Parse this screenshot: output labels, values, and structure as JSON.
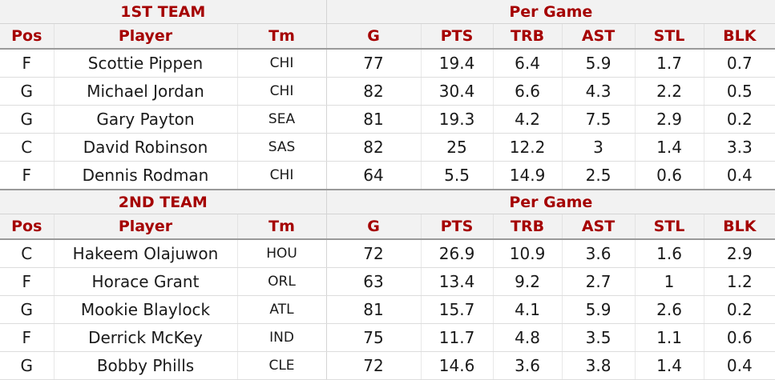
{
  "columns": {
    "pos": "Pos",
    "player": "Player",
    "tm": "Tm",
    "g": "G",
    "pts": "PTS",
    "trb": "TRB",
    "ast": "AST",
    "stl": "STL",
    "blk": "BLK"
  },
  "first_team": {
    "title": "1ST TEAM",
    "group": "Per Game",
    "rows": [
      {
        "pos": "F",
        "player": "Scottie Pippen",
        "tm": "CHI",
        "g": "77",
        "pts": "19.4",
        "trb": "6.4",
        "ast": "5.9",
        "stl": "1.7",
        "blk": "0.7"
      },
      {
        "pos": "G",
        "player": "Michael Jordan",
        "tm": "CHI",
        "g": "82",
        "pts": "30.4",
        "trb": "6.6",
        "ast": "4.3",
        "stl": "2.2",
        "blk": "0.5"
      },
      {
        "pos": "G",
        "player": "Gary Payton",
        "tm": "SEA",
        "g": "81",
        "pts": "19.3",
        "trb": "4.2",
        "ast": "7.5",
        "stl": "2.9",
        "blk": "0.2"
      },
      {
        "pos": "C",
        "player": "David Robinson",
        "tm": "SAS",
        "g": "82",
        "pts": "25",
        "trb": "12.2",
        "ast": "3",
        "stl": "1.4",
        "blk": "3.3"
      },
      {
        "pos": "F",
        "player": "Dennis Rodman",
        "tm": "CHI",
        "g": "64",
        "pts": "5.5",
        "trb": "14.9",
        "ast": "2.5",
        "stl": "0.6",
        "blk": "0.4"
      }
    ]
  },
  "second_team": {
    "title": "2ND TEAM",
    "group": "Per Game",
    "rows": [
      {
        "pos": "C",
        "player": "Hakeem Olajuwon",
        "tm": "HOU",
        "g": "72",
        "pts": "26.9",
        "trb": "10.9",
        "ast": "3.6",
        "stl": "1.6",
        "blk": "2.9"
      },
      {
        "pos": "F",
        "player": "Horace Grant",
        "tm": "ORL",
        "g": "63",
        "pts": "13.4",
        "trb": "9.2",
        "ast": "2.7",
        "stl": "1",
        "blk": "1.2"
      },
      {
        "pos": "G",
        "player": "Mookie Blaylock",
        "tm": "ATL",
        "g": "81",
        "pts": "15.7",
        "trb": "4.1",
        "ast": "5.9",
        "stl": "2.6",
        "blk": "0.2"
      },
      {
        "pos": "F",
        "player": "Derrick McKey",
        "tm": "IND",
        "g": "75",
        "pts": "11.7",
        "trb": "4.8",
        "ast": "3.5",
        "stl": "1.1",
        "blk": "0.6"
      },
      {
        "pos": "G",
        "player": "Bobby Phills",
        "tm": "CLE",
        "g": "72",
        "pts": "14.6",
        "trb": "3.6",
        "ast": "3.8",
        "stl": "1.4",
        "blk": "0.4"
      }
    ]
  }
}
